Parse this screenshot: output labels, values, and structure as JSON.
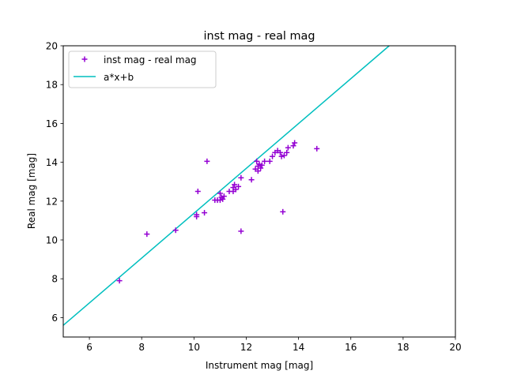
{
  "chart_data": {
    "type": "scatter",
    "title": "inst mag - real mag",
    "xlabel": "Instrument mag [mag]",
    "ylabel": "Real mag [mag]",
    "xlim": [
      5,
      20
    ],
    "ylim": [
      5,
      20
    ],
    "xticks": [
      "6",
      "8",
      "10",
      "12",
      "14",
      "16",
      "18",
      "20"
    ],
    "yticks": [
      "6",
      "8",
      "10",
      "12",
      "14",
      "16",
      "18",
      "20"
    ],
    "grid": false,
    "legend_position": "upper-left",
    "series": [
      {
        "name": "inst mag - real mag",
        "kind": "scatter",
        "marker": "plus",
        "color": "#9400D3",
        "points": [
          [
            7.15,
            7.9
          ],
          [
            8.2,
            10.3
          ],
          [
            9.3,
            10.5
          ],
          [
            10.1,
            11.2
          ],
          [
            10.1,
            11.3
          ],
          [
            10.15,
            12.5
          ],
          [
            10.4,
            11.4
          ],
          [
            10.5,
            14.05
          ],
          [
            10.8,
            12.05
          ],
          [
            10.9,
            12.05
          ],
          [
            11.0,
            12.4
          ],
          [
            11.0,
            12.05
          ],
          [
            11.05,
            12.2
          ],
          [
            11.1,
            12.1
          ],
          [
            11.15,
            12.25
          ],
          [
            11.35,
            12.5
          ],
          [
            11.5,
            12.5
          ],
          [
            11.5,
            12.7
          ],
          [
            11.55,
            12.85
          ],
          [
            11.6,
            12.6
          ],
          [
            11.7,
            12.75
          ],
          [
            11.8,
            10.45
          ],
          [
            11.8,
            13.2
          ],
          [
            12.2,
            13.1
          ],
          [
            12.35,
            13.65
          ],
          [
            12.4,
            14.05
          ],
          [
            12.45,
            13.55
          ],
          [
            12.45,
            13.8
          ],
          [
            12.5,
            13.9
          ],
          [
            12.55,
            13.7
          ],
          [
            12.6,
            13.85
          ],
          [
            12.7,
            14.05
          ],
          [
            12.9,
            14.05
          ],
          [
            13.0,
            14.3
          ],
          [
            13.1,
            14.5
          ],
          [
            13.2,
            14.6
          ],
          [
            13.3,
            14.5
          ],
          [
            13.35,
            14.3
          ],
          [
            13.4,
            11.45
          ],
          [
            13.45,
            14.35
          ],
          [
            13.55,
            14.5
          ],
          [
            13.6,
            14.75
          ],
          [
            13.8,
            14.85
          ],
          [
            13.85,
            15.0
          ],
          [
            14.7,
            14.7
          ]
        ]
      },
      {
        "name": "a*x+b",
        "kind": "line",
        "color": "#00BFBF",
        "slope": 1.155,
        "intercept": -0.175
      }
    ]
  }
}
